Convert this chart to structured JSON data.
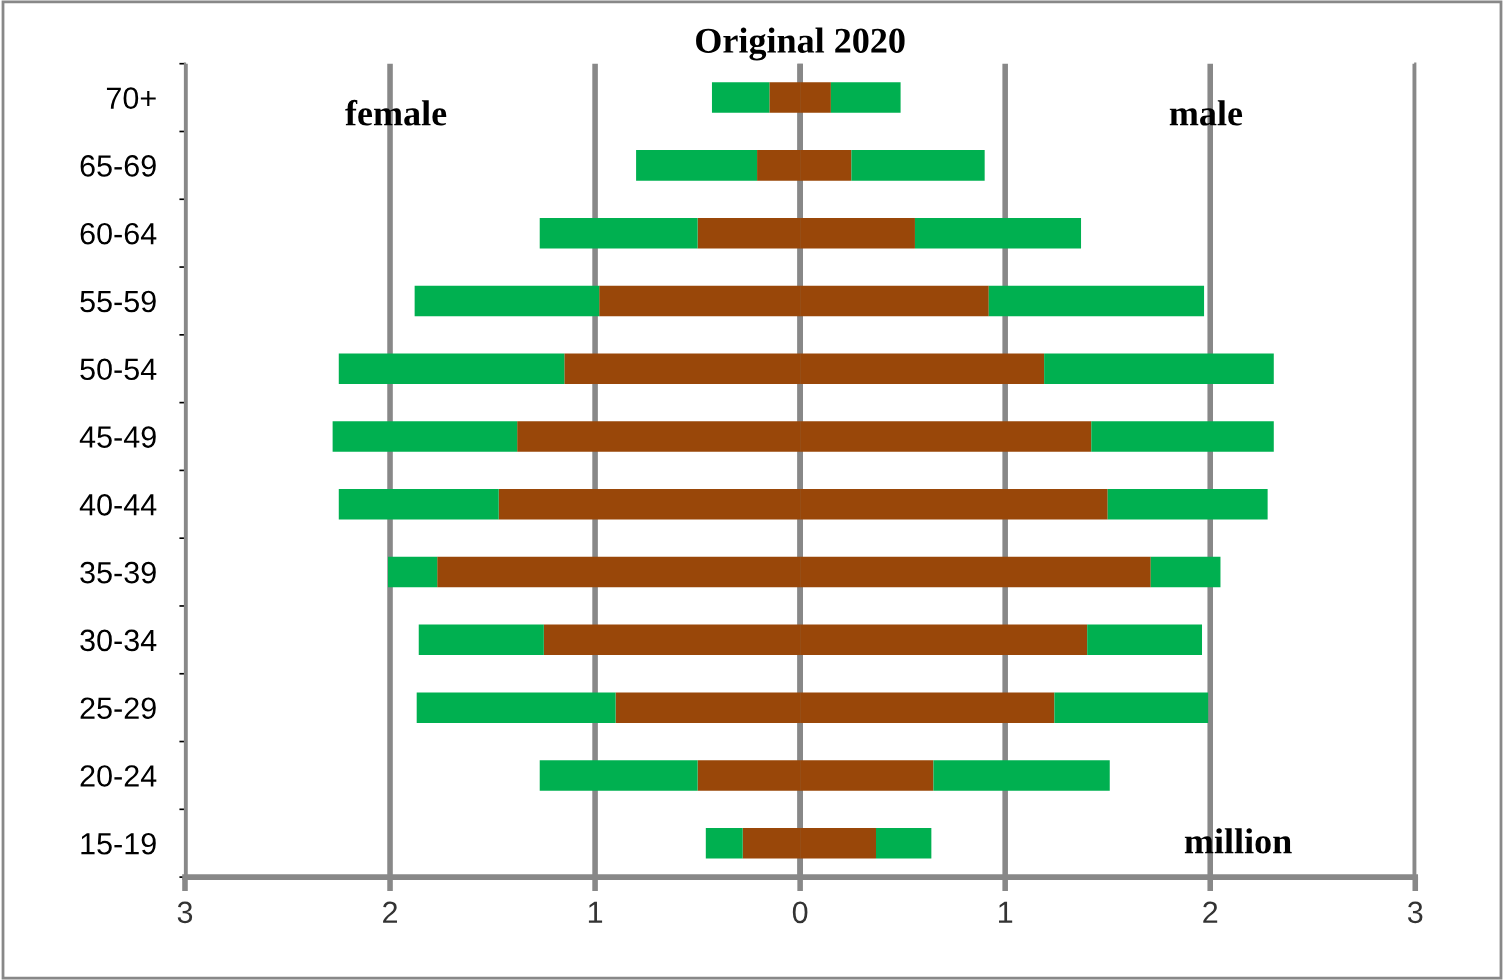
{
  "chart_data": {
    "type": "bar",
    "orientation": "horizontal",
    "stacked": true,
    "title": "Original 2020",
    "categories": [
      "70+",
      "65-69",
      "60-64",
      "55-59",
      "50-54",
      "45-49",
      "40-44",
      "35-39",
      "30-34",
      "25-29",
      "20-24",
      "15-19"
    ],
    "series": [
      {
        "color": "#994709",
        "values": [
          -0.15,
          -0.21,
          -0.5,
          -0.98,
          -1.15,
          -1.38,
          -1.47,
          -1.77,
          -1.25,
          -0.9,
          -0.5,
          -0.28
        ]
      },
      {
        "color": "#00b050",
        "values": [
          -0.28,
          -0.59,
          -0.77,
          -0.9,
          -1.1,
          -0.9,
          -0.78,
          -0.24,
          -0.61,
          -0.97,
          -0.77,
          -0.18
        ]
      },
      {
        "color": "#994709",
        "values": [
          0.15,
          0.25,
          0.56,
          0.92,
          1.19,
          1.42,
          1.5,
          1.71,
          1.4,
          1.24,
          0.65,
          0.37
        ]
      },
      {
        "color": "#00b050",
        "values": [
          0.34,
          0.65,
          0.81,
          1.05,
          1.12,
          0.89,
          0.78,
          0.34,
          0.56,
          0.75,
          0.86,
          0.27
        ]
      }
    ],
    "xlim": [
      -3,
      3
    ],
    "xticks": [
      {
        "value": -3,
        "label": "3"
      },
      {
        "value": -2,
        "label": "2"
      },
      {
        "value": -1,
        "label": "1"
      },
      0,
      1,
      2,
      3
    ],
    "grid": "x",
    "annotations": [
      "female",
      "male",
      "million"
    ]
  }
}
